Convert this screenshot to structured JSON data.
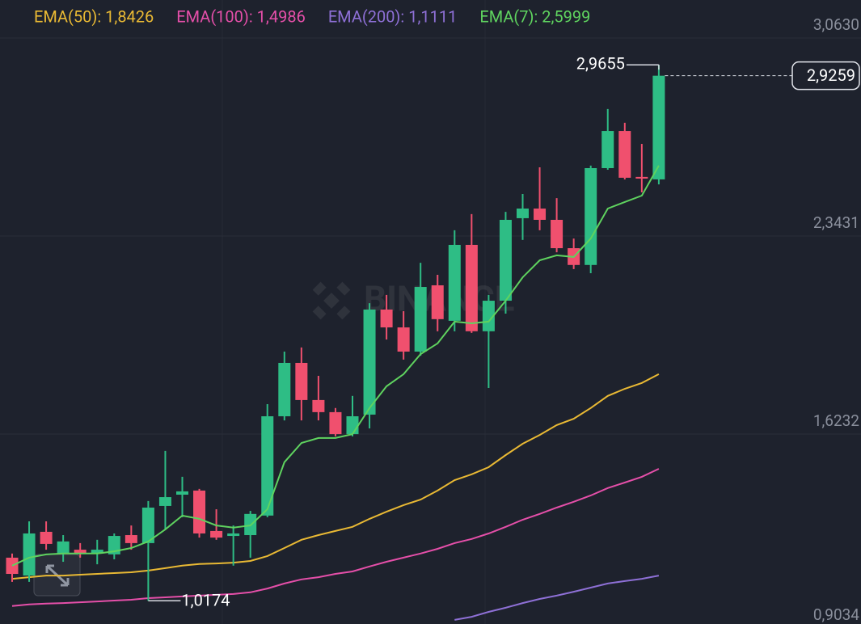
{
  "chart_data": {
    "type": "candlestick",
    "watermark": "BINANCE",
    "candles": {
      "up_color": "#2ebd85",
      "down_color": "#f0506e",
      "open": [
        1.174,
        1.109,
        1.268,
        1.189,
        1.203,
        1.189,
        1.186,
        1.256,
        1.227,
        1.362,
        1.403,
        1.418,
        1.271,
        1.253,
        1.256,
        1.327,
        1.688,
        1.882,
        1.747,
        1.703,
        1.623,
        1.694,
        2.076,
        2.011,
        1.923,
        2.164,
        2.035,
        2.311,
        1.997,
        2.108,
        2.408,
        2.443,
        2.402,
        2.299,
        2.238,
        2.59,
        2.725,
        2.558,
        2.549
      ],
      "high": [
        1.189,
        1.306,
        1.306,
        1.256,
        1.227,
        1.239,
        1.262,
        1.291,
        1.38,
        1.562,
        1.468,
        1.424,
        1.35,
        1.291,
        1.344,
        1.732,
        1.923,
        1.938,
        1.835,
        1.718,
        1.762,
        2.099,
        2.129,
        2.07,
        2.246,
        2.202,
        2.364,
        2.423,
        2.129,
        2.431,
        2.496,
        2.593,
        2.481,
        2.334,
        2.599,
        2.805,
        2.755,
        2.678,
        2.9655
      ],
      "low": [
        1.086,
        1.086,
        1.203,
        1.159,
        1.174,
        1.15,
        1.168,
        1.203,
        1.0174,
        1.277,
        1.321,
        1.247,
        1.239,
        1.145,
        1.174,
        1.321,
        1.673,
        1.673,
        1.673,
        1.615,
        1.615,
        1.644,
        1.967,
        1.894,
        1.908,
        1.997,
        1.997,
        1.991,
        1.791,
        2.061,
        2.329,
        2.364,
        2.284,
        2.223,
        2.208,
        2.584,
        2.549,
        2.502,
        2.531
      ],
      "close": [
        1.115,
        1.262,
        1.224,
        1.233,
        1.189,
        1.203,
        1.253,
        1.227,
        1.356,
        1.394,
        1.415,
        1.262,
        1.247,
        1.262,
        1.333,
        1.688,
        1.882,
        1.747,
        1.703,
        1.623,
        1.688,
        2.076,
        2.011,
        1.923,
        2.158,
        2.041,
        2.311,
        1.997,
        2.108,
        2.402,
        2.443,
        2.402,
        2.299,
        2.238,
        2.59,
        2.725,
        2.555,
        2.552,
        2.9259
      ]
    },
    "series": [
      {
        "name": "EMA(50): 1,8426",
        "color": "#e9b934",
        "values": [
          1.097,
          1.103,
          1.109,
          1.109,
          1.112,
          1.115,
          1.118,
          1.121,
          1.127,
          1.136,
          1.145,
          1.151,
          1.153,
          1.156,
          1.162,
          1.18,
          1.209,
          1.239,
          1.256,
          1.271,
          1.286,
          1.315,
          1.341,
          1.365,
          1.385,
          1.418,
          1.456,
          1.477,
          1.503,
          1.547,
          1.588,
          1.62,
          1.656,
          1.679,
          1.718,
          1.762,
          1.788,
          1.809,
          1.841
        ]
      },
      {
        "name": "EMA(100): 1,4986",
        "color": "#e54fa9",
        "values": [
          0.998,
          1.004,
          1.007,
          1.009,
          1.012,
          1.015,
          1.018,
          1.021,
          1.027,
          1.03,
          1.033,
          1.036,
          1.039,
          1.042,
          1.048,
          1.062,
          1.08,
          1.095,
          1.103,
          1.115,
          1.124,
          1.142,
          1.159,
          1.174,
          1.189,
          1.206,
          1.227,
          1.242,
          1.262,
          1.286,
          1.312,
          1.333,
          1.356,
          1.377,
          1.4,
          1.427,
          1.447,
          1.468,
          1.497
        ]
      },
      {
        "name": "EMA(200): 1,1111",
        "color": "#8e70d6",
        "values": [
          null,
          null,
          null,
          null,
          null,
          null,
          null,
          null,
          null,
          null,
          null,
          null,
          null,
          null,
          null,
          null,
          null,
          null,
          null,
          null,
          null,
          null,
          null,
          null,
          null,
          null,
          0.948,
          0.959,
          0.977,
          0.992,
          1.009,
          1.024,
          1.036,
          1.05,
          1.065,
          1.08,
          1.089,
          1.097,
          1.109
        ]
      },
      {
        "name": "EMA(7): 2,5999",
        "color": "#5fd35f",
        "values": [
          1.145,
          1.174,
          1.186,
          1.189,
          1.189,
          1.189,
          1.197,
          1.209,
          1.233,
          1.277,
          1.327,
          1.315,
          1.291,
          1.283,
          1.291,
          1.35,
          1.521,
          1.591,
          1.609,
          1.609,
          1.623,
          1.718,
          1.797,
          1.841,
          1.914,
          1.953,
          2.032,
          2.026,
          2.032,
          2.108,
          2.193,
          2.255,
          2.273,
          2.267,
          2.334,
          2.443,
          2.467,
          2.49,
          2.599
        ]
      }
    ],
    "high_label": {
      "value": 2.9655,
      "label": "2,9655"
    },
    "low_label": {
      "value": 1.0174,
      "label": "1,0174"
    },
    "last_price": {
      "value": 2.9259,
      "label": "2,9259"
    },
    "ylim": [
      0.9329,
      3.2011
    ],
    "yticks": [
      {
        "value": 3.063,
        "label": "3,0630"
      },
      {
        "value": 2.3431,
        "label": "2,3431"
      },
      {
        "value": 1.6232,
        "label": "1,6232"
      },
      {
        "value": 0.9034,
        "label": "0,9034"
      }
    ],
    "grid": true
  }
}
